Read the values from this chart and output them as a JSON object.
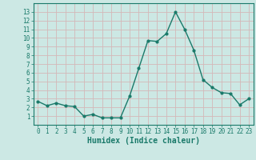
{
  "x": [
    0,
    1,
    2,
    3,
    4,
    5,
    6,
    7,
    8,
    9,
    10,
    11,
    12,
    13,
    14,
    15,
    16,
    17,
    18,
    19,
    20,
    21,
    22,
    23
  ],
  "y": [
    2.7,
    2.2,
    2.5,
    2.2,
    2.1,
    1.0,
    1.2,
    0.8,
    0.8,
    0.8,
    3.3,
    6.5,
    9.7,
    9.6,
    10.5,
    13.0,
    11.0,
    8.6,
    5.2,
    4.3,
    3.7,
    3.6,
    2.3,
    3.0
  ],
  "line_color": "#1a7a6a",
  "marker": "o",
  "marker_size": 2,
  "linewidth": 1.0,
  "bg_color": "#cce8e4",
  "grid_color": "#d4b8b8",
  "xlabel": "Humidex (Indice chaleur)",
  "xlim": [
    -0.5,
    23.5
  ],
  "ylim": [
    0,
    14
  ],
  "yticks": [
    1,
    2,
    3,
    4,
    5,
    6,
    7,
    8,
    9,
    10,
    11,
    12,
    13
  ],
  "xticks": [
    0,
    1,
    2,
    3,
    4,
    5,
    6,
    7,
    8,
    9,
    10,
    11,
    12,
    13,
    14,
    15,
    16,
    17,
    18,
    19,
    20,
    21,
    22,
    23
  ],
  "xlabel_fontsize": 7,
  "tick_fontsize": 5.5,
  "tick_color": "#1a7a6a",
  "axis_color": "#1a7a6a"
}
